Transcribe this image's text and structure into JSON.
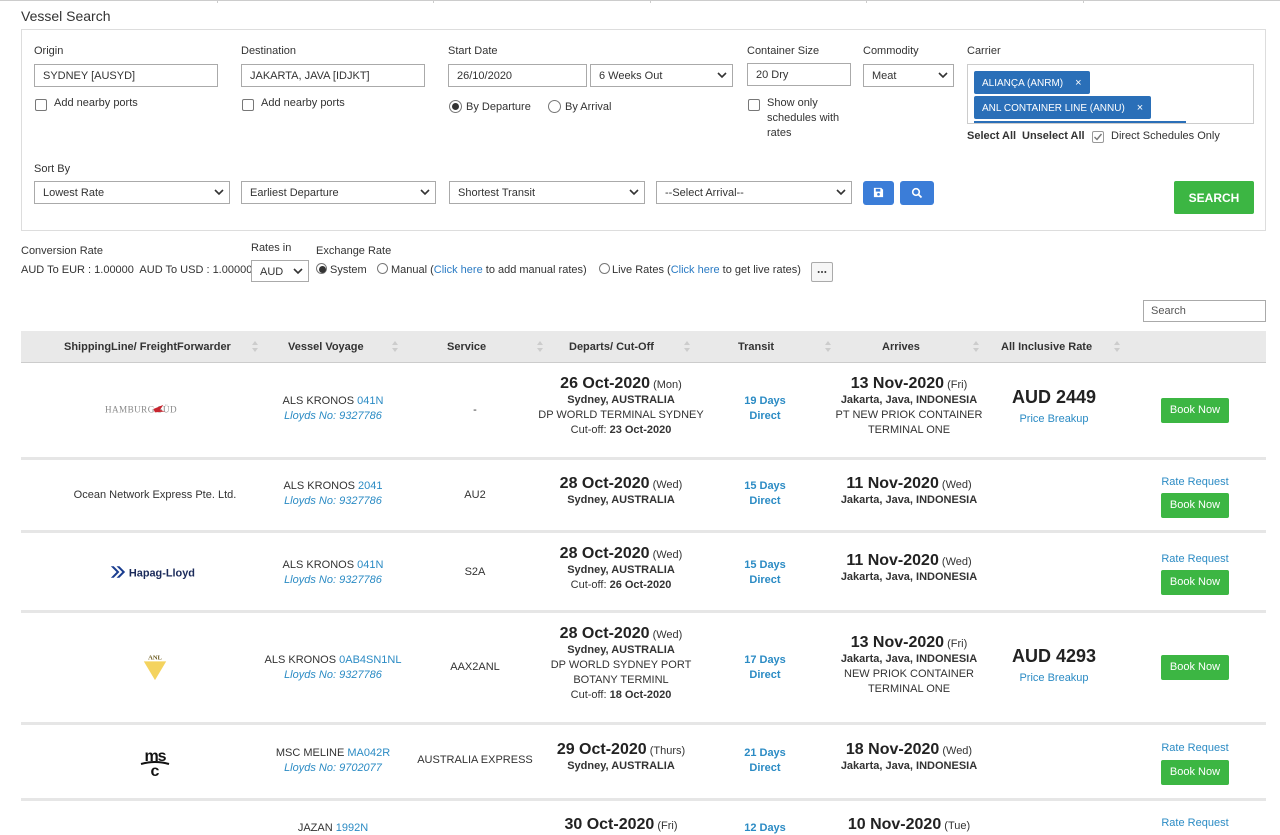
{
  "page": {
    "title": "Vessel Search"
  },
  "form": {
    "origin": {
      "label": "Origin",
      "value": "SYDNEY [AUSYD]",
      "nearby_label": "Add nearby ports"
    },
    "destination": {
      "label": "Destination",
      "value": "JAKARTA, JAVA [IDJKT]",
      "nearby_label": "Add nearby ports"
    },
    "start_date": {
      "label": "Start Date",
      "value": "26/10/2020",
      "weeks": "6 Weeks Out",
      "by_departure": "By Departure",
      "by_arrival": "By Arrival"
    },
    "container_size": {
      "label": "Container Size",
      "value": "20 Dry",
      "rates_only": "Show only schedules with rates"
    },
    "commodity": {
      "label": "Commodity",
      "value": "Meat"
    },
    "carrier": {
      "label": "Carrier",
      "tags": [
        "ALIANÇA (ANRM)",
        "ANL CONTAINER LINE (ANNU)"
      ],
      "select_all": "Select All",
      "unselect_all": "Unselect All",
      "direct_only": "Direct Schedules Only"
    },
    "sort_by": {
      "label": "Sort By",
      "options": [
        "Lowest Rate",
        "Earliest Departure",
        "Shortest Transit",
        "--Select Arrival--"
      ]
    },
    "search_button": "SEARCH"
  },
  "conversion": {
    "label": "Conversion Rate",
    "values": "AUD To EUR : 1.00000  AUD To USD : 1.00000",
    "rates_in_label": "Rates in",
    "rates_in_value": "AUD",
    "exchange_label": "Exchange Rate",
    "system": "System",
    "manual": "Manual (",
    "manual_link": "Click here",
    "manual_tail": " to add manual rates)",
    "live": "Live Rates (",
    "live_link": "Click here",
    "live_tail": " to get live rates)"
  },
  "table": {
    "search_placeholder": "Search",
    "headers": [
      "ShippingLine/ FreightForwarder",
      "Vessel Voyage",
      "Service",
      "Departs/ Cut-Off",
      "Transit",
      "Arrives",
      "All Inclusive Rate"
    ],
    "rows": [
      {
        "carrier": "HAMBURG SÜD",
        "vessel": "ALS KRONOS",
        "voyage": "041N",
        "lloyds": "Lloyds No: 9327786",
        "service": "-",
        "dep_date": "26 Oct-2020",
        "dep_dow": "(Mon)",
        "dep_place": "Sydney, AUSTRALIA",
        "dep_terminal": "DP WORLD TERMINAL SYDNEY",
        "cutoff_label": "Cut-off: ",
        "cutoff": "23 Oct-2020",
        "transit": "19 Days",
        "transit_type": "Direct",
        "arr_date": "13 Nov-2020",
        "arr_dow": "(Fri)",
        "arr_place": "Jakarta, Java, INDONESIA",
        "arr_terminal": "PT NEW PRIOK CONTAINER TERMINAL ONE",
        "rate": "AUD 2449",
        "breakup": "Price Breakup",
        "book": "Book Now"
      },
      {
        "carrier": "Ocean Network Express Pte. Ltd.",
        "vessel": "ALS KRONOS",
        "voyage": "2041",
        "lloyds": "Lloyds No: 9327786",
        "service": "AU2",
        "dep_date": "28 Oct-2020",
        "dep_dow": "(Wed)",
        "dep_place": "Sydney, AUSTRALIA",
        "transit": "15 Days",
        "transit_type": "Direct",
        "arr_date": "11 Nov-2020",
        "arr_dow": "(Wed)",
        "arr_place": "Jakarta, Java, INDONESIA",
        "rate_request": "Rate Request",
        "book": "Book Now"
      },
      {
        "carrier": "Hapag-Lloyd",
        "vessel": "ALS KRONOS",
        "voyage": "041N",
        "lloyds": "Lloyds No: 9327786",
        "service": "S2A",
        "dep_date": "28 Oct-2020",
        "dep_dow": "(Wed)",
        "dep_place": "Sydney, AUSTRALIA",
        "cutoff_label": "Cut-off: ",
        "cutoff": "26 Oct-2020",
        "transit": "15 Days",
        "transit_type": "Direct",
        "arr_date": "11 Nov-2020",
        "arr_dow": "(Wed)",
        "arr_place": "Jakarta, Java, INDONESIA",
        "rate_request": "Rate Request",
        "book": "Book Now"
      },
      {
        "carrier": "ANL",
        "vessel": "ALS KRONOS",
        "voyage": "0AB4SN1NL",
        "lloyds": "Lloyds No: 9327786",
        "service": "AAX2ANL",
        "dep_date": "28 Oct-2020",
        "dep_dow": "(Wed)",
        "dep_place": "Sydney, AUSTRALIA",
        "dep_terminal": "DP WORLD SYDNEY PORT BOTANY TERMINL",
        "cutoff_label": "Cut-off: ",
        "cutoff": "18 Oct-2020",
        "transit": "17 Days",
        "transit_type": "Direct",
        "arr_date": "13 Nov-2020",
        "arr_dow": "(Fri)",
        "arr_place": "Jakarta, Java, INDONESIA",
        "arr_terminal": "NEW PRIOK CONTAINER TERMINAL ONE",
        "rate": "AUD 4293",
        "breakup": "Price Breakup",
        "book": "Book Now"
      },
      {
        "carrier": "msc",
        "vessel": "MSC MELINE",
        "voyage": "MA042R",
        "lloyds": "Lloyds No: 9702077",
        "service": "AUSTRALIA EXPRESS",
        "dep_date": "29 Oct-2020",
        "dep_dow": "(Thurs)",
        "dep_place": "Sydney, AUSTRALIA",
        "transit": "21 Days",
        "transit_type": "Direct",
        "arr_date": "18 Nov-2020",
        "arr_dow": "(Wed)",
        "arr_place": "Jakarta, Java, INDONESIA",
        "rate_request": "Rate Request",
        "book": "Book Now"
      },
      {
        "vessel": "JAZAN",
        "voyage": "1992N",
        "dep_date": "30 Oct-2020",
        "dep_dow": "(Fri)",
        "transit": "12 Days",
        "arr_date": "10 Nov-2020",
        "arr_dow": "(Tue)",
        "rate_request": "Rate Request"
      }
    ]
  }
}
